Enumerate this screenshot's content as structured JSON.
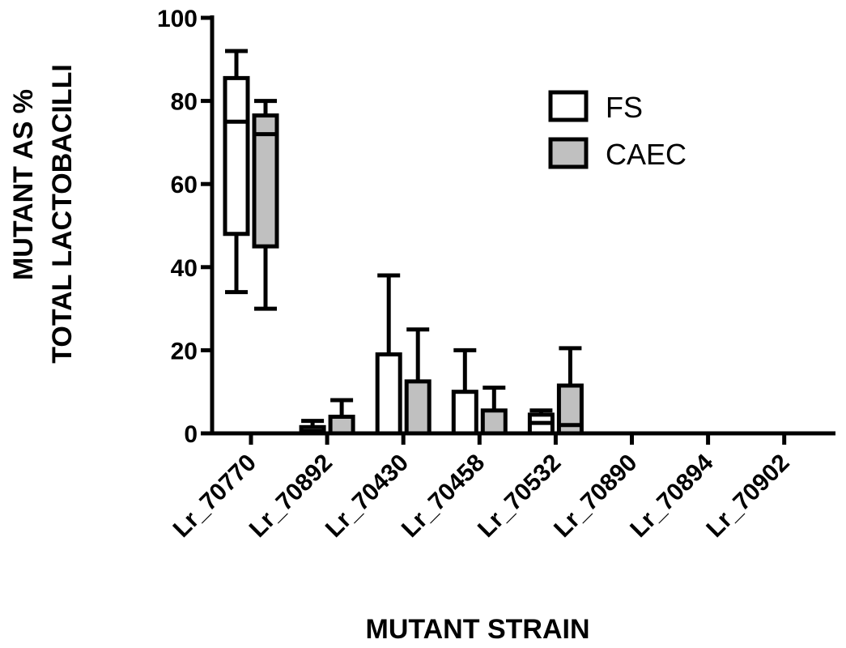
{
  "chart_data": {
    "type": "box",
    "ylabel": [
      "MUTANT AS %",
      "TOTAL LACTOBACILLI"
    ],
    "xlabel": "MUTANT STRAIN",
    "ylim": [
      0,
      100
    ],
    "yticks": [
      0,
      20,
      40,
      60,
      80,
      100
    ],
    "categories": [
      "Lr_70770",
      "Lr_70892",
      "Lr_70430",
      "Lr_70458",
      "Lr_70532",
      "Lr_70890",
      "Lr_70894",
      "Lr_70902"
    ],
    "series": [
      {
        "name": "FS",
        "color": "#ffffff",
        "boxes": [
          {
            "min": 34,
            "q1": 48,
            "median": 75,
            "q3": 85.5,
            "max": 92
          },
          {
            "min": 0,
            "q1": 0,
            "median": 0.5,
            "q3": 1.5,
            "max": 3
          },
          {
            "min": 0,
            "q1": 0,
            "median": 0,
            "q3": 19,
            "max": 38
          },
          {
            "min": 0,
            "q1": 0,
            "median": 0,
            "q3": 10,
            "max": 20
          },
          {
            "min": 0,
            "q1": 0,
            "median": 2.5,
            "q3": 4.5,
            "max": 5.5
          },
          {
            "min": 0,
            "q1": 0,
            "median": 0,
            "q3": 0,
            "max": 0
          },
          {
            "min": 0,
            "q1": 0,
            "median": 0,
            "q3": 0,
            "max": 0
          },
          {
            "min": 0,
            "q1": 0,
            "median": 0,
            "q3": 0,
            "max": 0
          }
        ]
      },
      {
        "name": "CAEC",
        "color": "#c0c0c0",
        "boxes": [
          {
            "min": 30,
            "q1": 45,
            "median": 72,
            "q3": 76.5,
            "max": 80
          },
          {
            "min": 0,
            "q1": 0,
            "median": 0,
            "q3": 4,
            "max": 8
          },
          {
            "min": 0,
            "q1": 0,
            "median": 0,
            "q3": 12.5,
            "max": 25
          },
          {
            "min": 0,
            "q1": 0,
            "median": 0,
            "q3": 5.5,
            "max": 11
          },
          {
            "min": 0,
            "q1": 0,
            "median": 2,
            "q3": 11.5,
            "max": 20.5
          },
          {
            "min": 0,
            "q1": 0,
            "median": 0,
            "q3": 0,
            "max": 0
          },
          {
            "min": 0,
            "q1": 0,
            "median": 0,
            "q3": 0,
            "max": 0
          },
          {
            "min": 0,
            "q1": 0,
            "median": 0,
            "q3": 0,
            "max": 0
          }
        ]
      }
    ],
    "legend": {
      "position": "top-right",
      "entries": [
        "FS",
        "CAEC"
      ]
    },
    "grid": false
  }
}
